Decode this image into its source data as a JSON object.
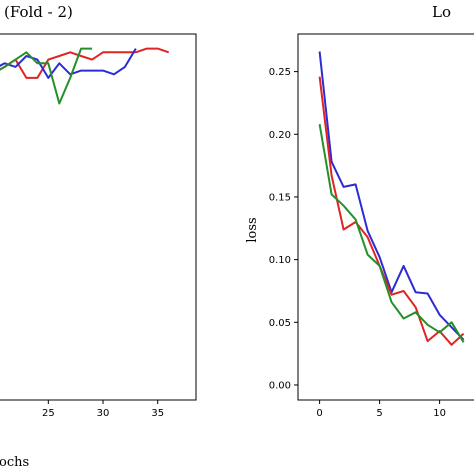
{
  "chart_data": [
    {
      "type": "line",
      "title": "(Fold - 2)",
      "xlabel": "ochs",
      "ylabel": "",
      "xlim": [
        20.4,
        38.5
      ],
      "ylim": [
        0.0,
        1.0
      ],
      "xticks": [
        25,
        30,
        35
      ],
      "series": [
        {
          "color": "#e02424",
          "x": [
            20.4,
            21,
            22,
            23,
            24,
            25,
            26,
            27,
            28,
            29,
            30,
            31,
            32,
            33,
            34,
            35,
            36
          ],
          "y": [
            0.9,
            0.91,
            0.93,
            0.88,
            0.88,
            0.93,
            0.94,
            0.95,
            0.94,
            0.93,
            0.95,
            0.95,
            0.95,
            0.95,
            0.96,
            0.96,
            0.95
          ]
        },
        {
          "color": "#2c2cd4",
          "x": [
            20.4,
            21,
            22,
            23,
            24,
            25,
            26,
            27,
            28,
            29,
            30,
            31,
            32,
            33
          ],
          "y": [
            0.91,
            0.92,
            0.91,
            0.94,
            0.93,
            0.88,
            0.92,
            0.89,
            0.9,
            0.9,
            0.9,
            0.89,
            0.91,
            0.96
          ]
        },
        {
          "color": "#24902a",
          "x": [
            20.4,
            21,
            22,
            23,
            24,
            25,
            26,
            27,
            28,
            29
          ],
          "y": [
            0.9,
            0.91,
            0.93,
            0.95,
            0.92,
            0.92,
            0.81,
            0.88,
            0.96,
            0.96
          ]
        }
      ]
    },
    {
      "type": "line",
      "title": "Lo",
      "xlabel": "",
      "ylabel": "loss",
      "xlim": [
        -1.8,
        13.2
      ],
      "ylim": [
        -0.012,
        0.28
      ],
      "xticks": [
        0,
        5,
        10
      ],
      "yticks": [
        "0.00",
        "0.05",
        "0.10",
        "0.15",
        "0.20",
        "0.25"
      ],
      "series": [
        {
          "color": "#2c2cd4",
          "x": [
            0,
            1,
            2,
            3,
            4,
            5,
            6,
            7,
            8,
            9,
            10,
            11,
            12
          ],
          "y": [
            0.266,
            0.178,
            0.158,
            0.16,
            0.123,
            0.102,
            0.074,
            0.095,
            0.074,
            0.073,
            0.056,
            0.046,
            0.036
          ]
        },
        {
          "color": "#e02424",
          "x": [
            0,
            1,
            2,
            3,
            4,
            5,
            6,
            7,
            8,
            9,
            10,
            11,
            12
          ],
          "y": [
            0.246,
            0.167,
            0.124,
            0.13,
            0.118,
            0.095,
            0.072,
            0.075,
            0.062,
            0.035,
            0.043,
            0.032,
            0.041
          ]
        },
        {
          "color": "#24902a",
          "x": [
            0,
            1,
            2,
            3,
            4,
            5,
            6,
            7,
            8,
            9,
            10,
            11,
            12
          ],
          "y": [
            0.208,
            0.152,
            0.143,
            0.132,
            0.104,
            0.095,
            0.066,
            0.053,
            0.058,
            0.048,
            0.042,
            0.05,
            0.034
          ]
        }
      ]
    }
  ]
}
